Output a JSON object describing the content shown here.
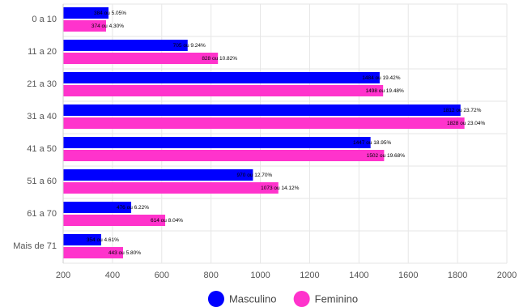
{
  "chart_data": {
    "type": "bar",
    "orientation": "horizontal",
    "categories": [
      "0 a 10",
      "11 a 20",
      "21 a 30",
      "31 a 40",
      "41 a 50",
      "51 a 60",
      "61 a 70",
      "Mais de 71"
    ],
    "series": [
      {
        "name": "Masculino",
        "color": "#0000ff",
        "values": [
          384,
          705,
          1484,
          1812,
          1447,
          970,
          476,
          354
        ],
        "labels": [
          "384 ou 5.05%",
          "705 ou 9.24%",
          "1484 ou 19.42%",
          "1812 ou 23.72%",
          "1447 ou 18.95%",
          "970 ou 12.70%",
          "476 ou 6.22%",
          "354 ou 4.61%"
        ]
      },
      {
        "name": "Feminino",
        "color": "#ff33cc",
        "values": [
          374,
          828,
          1498,
          1828,
          1502,
          1073,
          614,
          443
        ],
        "labels": [
          "374 ou 4.30%",
          "828 ou 10.82%",
          "1498 ou 19.48%",
          "1828 ou 23.04%",
          "1502 ou 19.68%",
          "1073 ou 14.12%",
          "614 ou 8.04%",
          "443 ou 5.80%"
        ]
      }
    ],
    "xlim": [
      200,
      2000
    ],
    "xticks": [
      "200",
      "400",
      "600",
      "800",
      "1000",
      "1200",
      "1400",
      "1600",
      "1800",
      "2000"
    ],
    "grid": true,
    "legend_position": "bottom",
    "title": "",
    "xlabel": "",
    "ylabel": ""
  }
}
